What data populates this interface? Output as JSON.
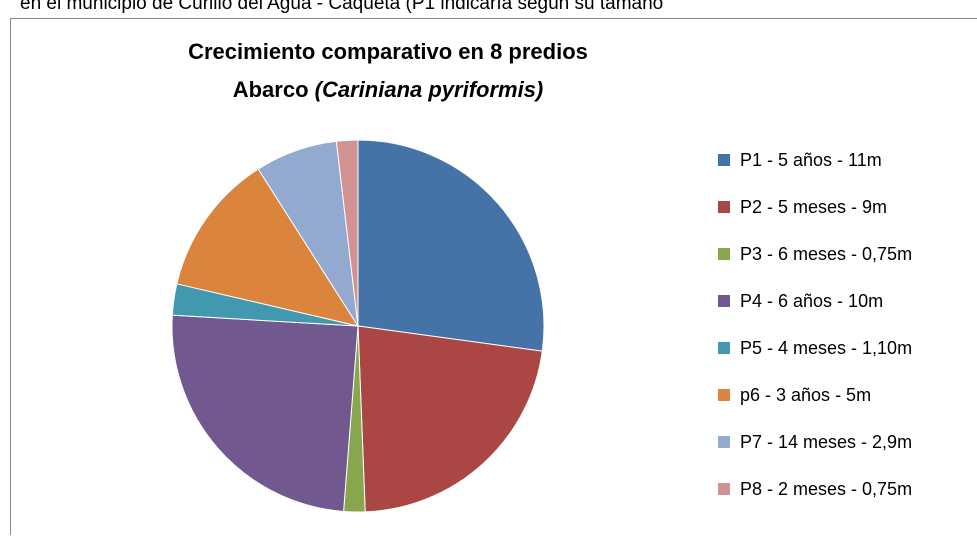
{
  "header": {
    "caption": "en el municipio de Curillo del Agua - Caquetá  (P1 indicaría según su tamaño"
  },
  "chart_data": {
    "type": "pie",
    "title_line1": "Crecimiento comparativo en 8 predios",
    "title_line2": "Abarco",
    "title_line2_italic": "(Cariniana pyriformis)",
    "categories": [
      "P1 - 5 años - 11m",
      "P2 - 5 meses - 9m",
      "P3 - 6 meses - 0,75m",
      "P4 - 6 años - 10m",
      "P5 - 4 meses - 1,10m",
      "p6 - 3 años - 5m",
      "P7 - 14 meses - 2,9m",
      "P8 - 2 meses - 0,75m"
    ],
    "values": [
      11,
      9,
      0.75,
      10,
      1.1,
      5,
      2.9,
      0.75
    ],
    "colors": [
      "#4572a7",
      "#aa4643",
      "#89a54e",
      "#71588f",
      "#4198af",
      "#db843d",
      "#93a9cf",
      "#d19392"
    ],
    "legend": "right"
  }
}
